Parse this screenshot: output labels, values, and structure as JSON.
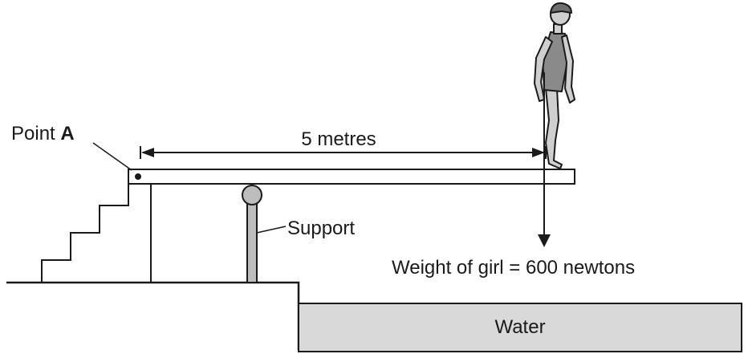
{
  "labels": {
    "point_prefix": "Point ",
    "point_letter": "A",
    "distance": "5 metres",
    "support": "Support",
    "weight": "Weight of girl = 600 newtons",
    "water": "Water"
  },
  "colors": {
    "line": "#1a1a1a",
    "water_fill": "#d9d9d9",
    "support_fill": "#bdbdbd",
    "figure_fill": "#cfcfcf",
    "swimsuit_fill": "#8a8a8a"
  },
  "values": {
    "distance_m": 5,
    "weight_n": 600
  }
}
